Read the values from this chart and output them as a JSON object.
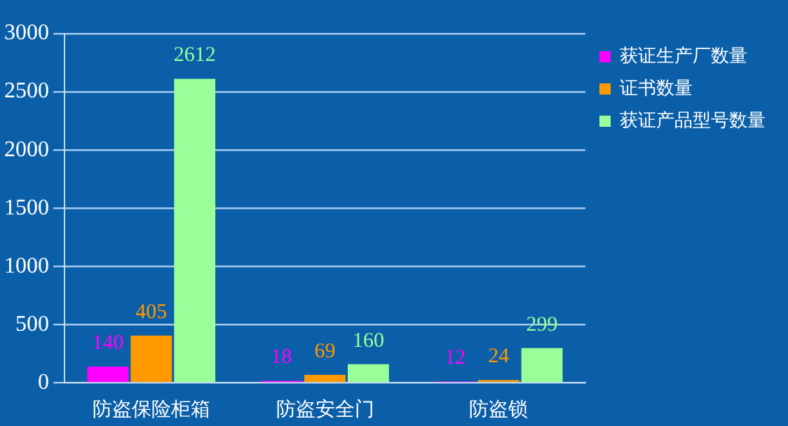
{
  "chart_data": {
    "type": "bar",
    "categories": [
      "防盗保险柜箱",
      "防盗安全门",
      "防盗锁"
    ],
    "series": [
      {
        "name": "获证生产厂数量",
        "color": "#ff00ff",
        "values": [
          140,
          18,
          12
        ]
      },
      {
        "name": "证书数量",
        "color": "#ff9900",
        "values": [
          405,
          69,
          24
        ]
      },
      {
        "name": "获证产品型号数量",
        "color": "#99ff99",
        "values": [
          2612,
          160,
          299
        ]
      }
    ],
    "ylim": [
      0,
      3000
    ],
    "yticks": [
      0,
      500,
      1000,
      1500,
      2000,
      2500,
      3000
    ],
    "grid": "y",
    "legend": "top right",
    "data_labels": true
  }
}
